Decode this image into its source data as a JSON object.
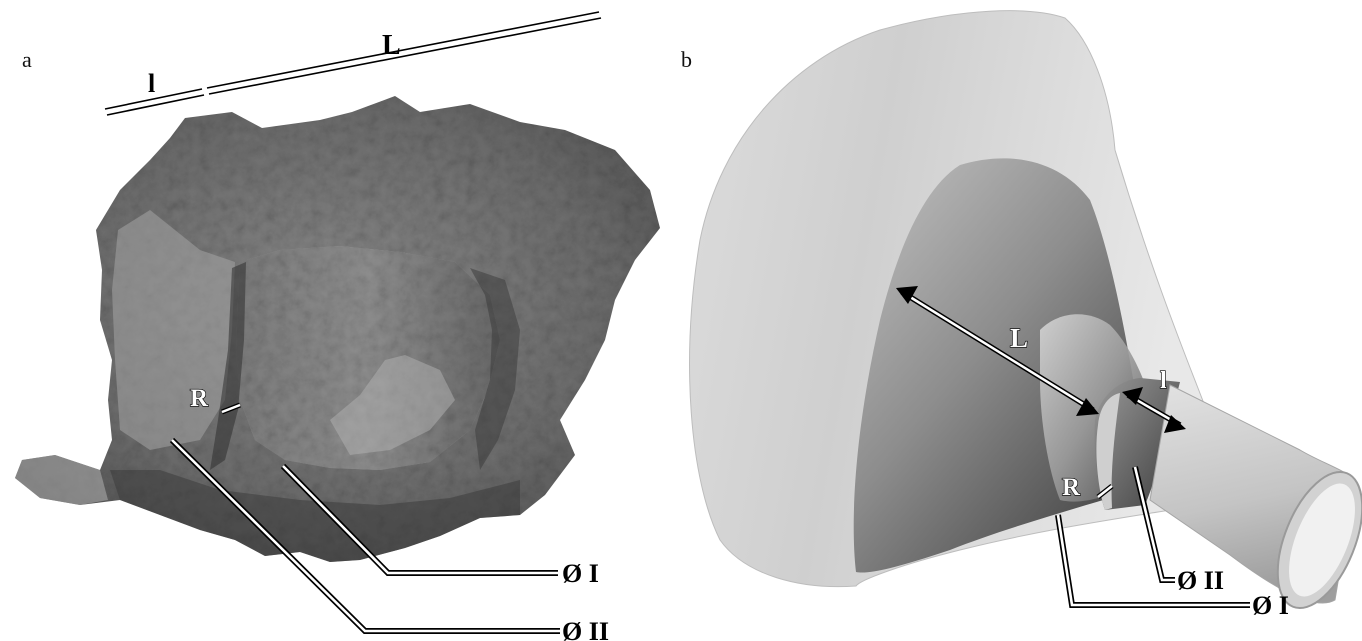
{
  "panels": {
    "a": {
      "letter": "a",
      "labels": {
        "L": "L",
        "l": "l",
        "R": "R",
        "phi1": "Ø I",
        "phi2": "Ø II"
      }
    },
    "b": {
      "letter": "b",
      "labels": {
        "L": "L",
        "l": "l",
        "R": "R",
        "phi1": "Ø I",
        "phi2": "Ø II"
      }
    }
  },
  "colors": {
    "stone_dark": "#4e4e4e",
    "stone_mid": "#7a7a7a",
    "stone_light": "#9a9a9a",
    "funnel_light": "#e6e6e6",
    "funnel_mid": "#a7a7a7",
    "funnel_dark": "#5b5b5b"
  }
}
